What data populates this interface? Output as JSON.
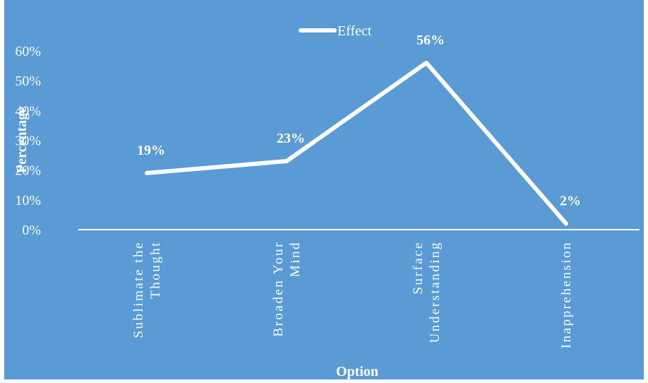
{
  "chart_data": {
    "type": "line",
    "title": "",
    "xlabel": "Option",
    "ylabel": "Percentage",
    "categories": [
      [
        "Sublimate the",
        "Thought"
      ],
      [
        "Broaden Your",
        "Mind"
      ],
      [
        "Surface",
        "Understanding"
      ],
      [
        "Inapprehension"
      ]
    ],
    "series": [
      {
        "name": "Effect",
        "values": [
          19,
          23,
          56,
          2
        ],
        "data_labels": [
          "19%",
          "23%",
          "56%",
          "2%"
        ]
      }
    ],
    "ylim": [
      0,
      60
    ],
    "yticks": [
      0,
      10,
      20,
      30,
      40,
      50,
      60
    ],
    "ytick_labels": [
      "0%",
      "10%",
      "20%",
      "30%",
      "40%",
      "50%",
      "60%"
    ],
    "grid": false,
    "drop_lines": true,
    "legend_position": "top-center",
    "background_color": "#5b9bd5",
    "line_color": "#ffffff"
  }
}
